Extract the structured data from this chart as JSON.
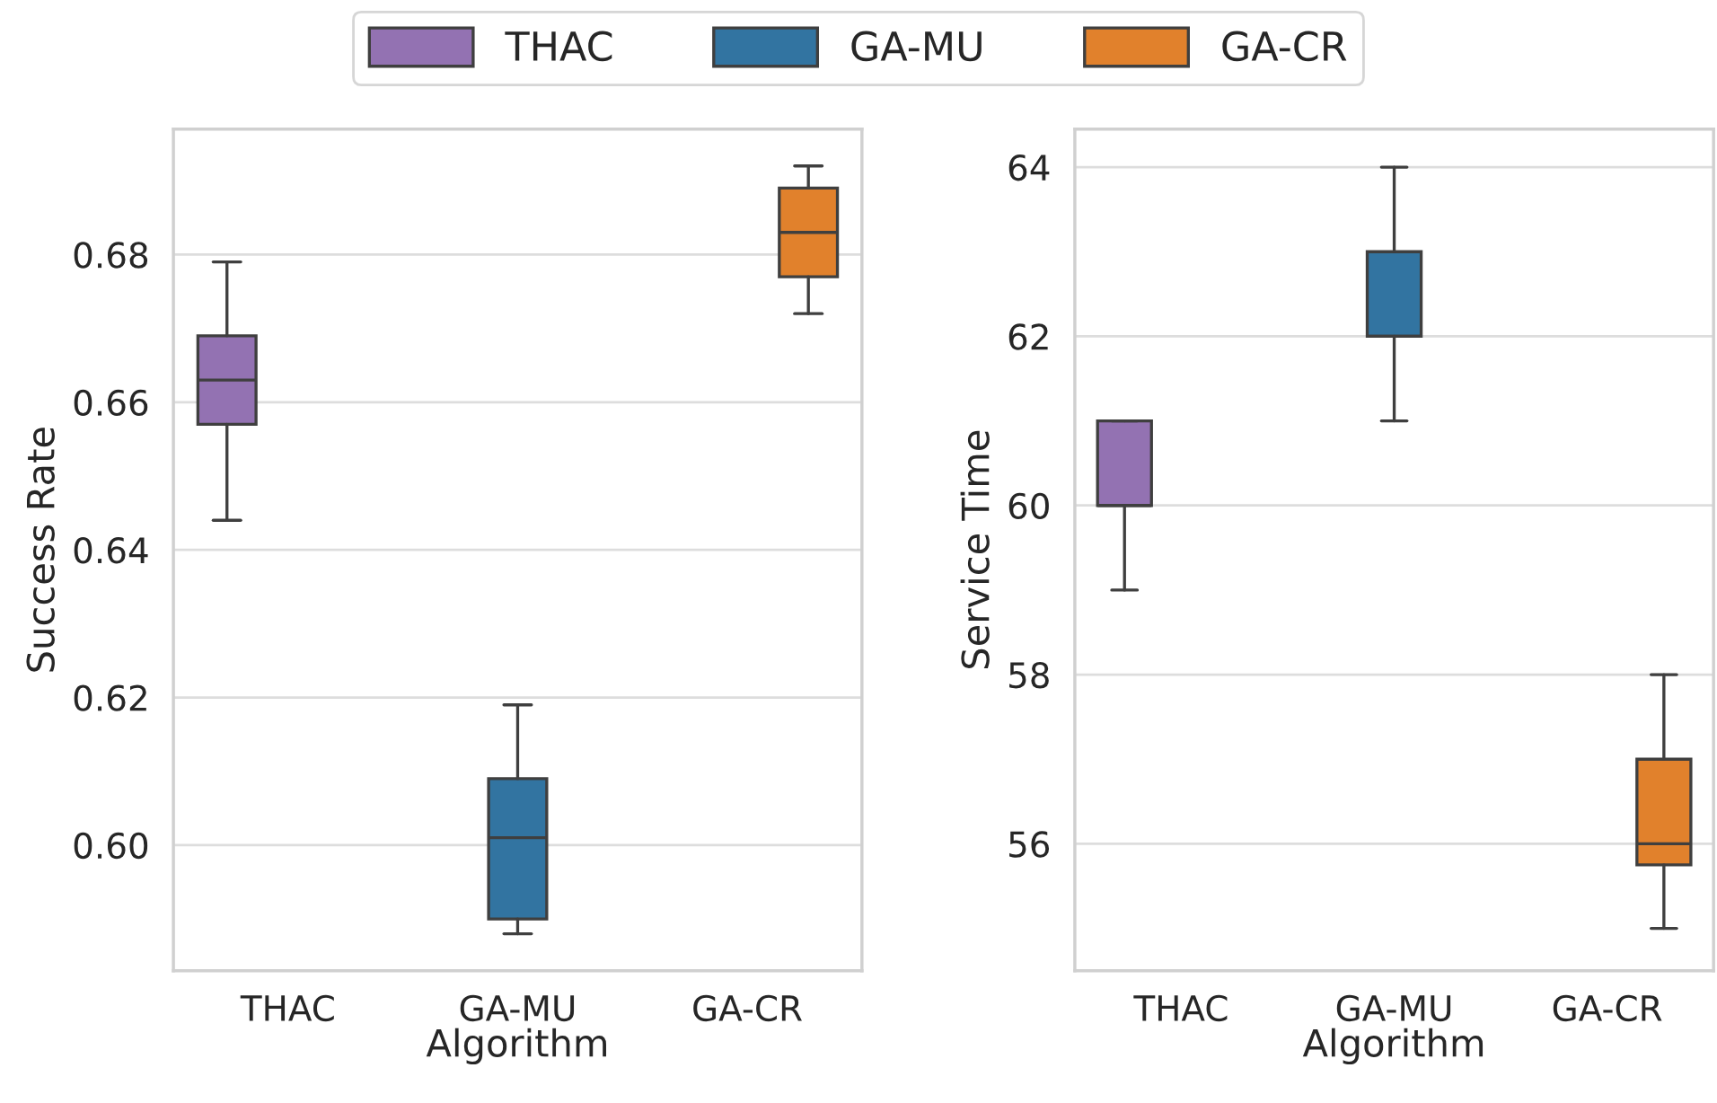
{
  "chart_data": [
    {
      "type": "box",
      "xlabel": "Algorithm",
      "ylabel": "Success Rate",
      "categories": [
        "THAC",
        "GA-MU",
        "GA-CR"
      ],
      "series": [
        {
          "name": "THAC",
          "color": "#9372b2",
          "boxes": [
            {
              "low": 0.644,
              "q1": 0.657,
              "median": 0.663,
              "q3": 0.669,
              "high": 0.679
            },
            null,
            null
          ]
        },
        {
          "name": "GA-MU",
          "color": "#3274a1",
          "boxes": [
            null,
            {
              "low": 0.588,
              "q1": 0.59,
              "median": 0.601,
              "q3": 0.609,
              "high": 0.619
            },
            null
          ]
        },
        {
          "name": "GA-CR",
          "color": "#e1812c",
          "boxes": [
            null,
            null,
            {
              "low": 0.672,
              "q1": 0.677,
              "median": 0.683,
              "q3": 0.689,
              "high": 0.692
            }
          ]
        }
      ],
      "ylim": [
        0.583,
        0.697
      ],
      "yticks": [
        {
          "value": 0.6,
          "label": "0.60"
        },
        {
          "value": 0.62,
          "label": "0.62"
        },
        {
          "value": 0.64,
          "label": "0.64"
        },
        {
          "value": 0.66,
          "label": "0.66"
        },
        {
          "value": 0.68,
          "label": "0.68"
        }
      ],
      "grid": "y",
      "legend": "top"
    },
    {
      "type": "box",
      "xlabel": "Algorithm",
      "ylabel": "Service Time",
      "categories": [
        "THAC",
        "GA-MU",
        "GA-CR"
      ],
      "series": [
        {
          "color": "#9372b2",
          "boxes": [
            {
              "low": 59,
              "q1": 60,
              "median": 60,
              "q3": 61,
              "high": 61
            },
            null,
            null
          ]
        },
        {
          "color": "#3274a1",
          "boxes": [
            null,
            {
              "low": 61,
              "q1": 62,
              "median": 62,
              "q3": 63,
              "high": 64
            },
            null
          ]
        },
        {
          "color": "#e1812c",
          "boxes": [
            null,
            null,
            {
              "low": 55,
              "q1": 55.75,
              "median": 56,
              "q3": 57,
              "high": 58
            }
          ]
        }
      ],
      "ylim": [
        54.5,
        64.45
      ],
      "yticks": [
        56,
        58,
        60,
        62,
        64
      ],
      "grid": "y"
    }
  ]
}
